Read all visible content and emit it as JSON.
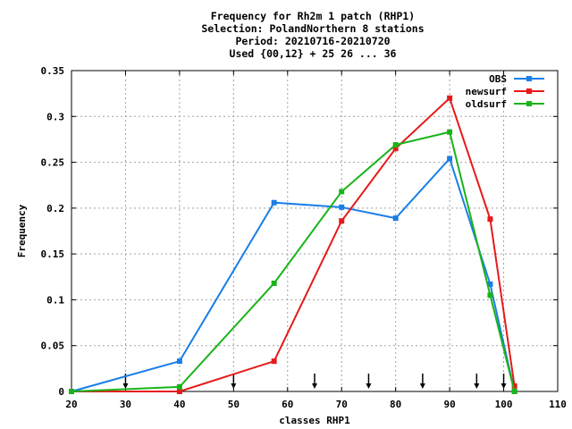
{
  "chart_data": {
    "type": "line",
    "title_lines": [
      "Frequency  for Rh2m 1 patch (RHP1)",
      "Selection: PolandNorthern      8 stations",
      "Period: 20210716-20210720",
      "Used {00,12} + 25 26 ... 36"
    ],
    "xlabel": "classes RHP1",
    "ylabel": "Frequency",
    "xlim": [
      20,
      110
    ],
    "ylim": [
      0,
      0.35
    ],
    "x_ticks": [
      20,
      30,
      40,
      50,
      60,
      70,
      80,
      90,
      100,
      110
    ],
    "x_tick_labels": [
      "20",
      "30",
      "40",
      "50",
      "60",
      "70",
      "80",
      "90",
      "100",
      "110"
    ],
    "y_ticks": [
      0,
      0.05,
      0.1,
      0.15,
      0.2,
      0.25,
      0.3,
      0.35
    ],
    "y_tick_labels": [
      "0",
      "0.05",
      "0.1",
      "0.15",
      "0.2",
      "0.25",
      "0.3",
      "0.35"
    ],
    "grid": true,
    "legend_position": "top-right",
    "class_boundary_arrows": [
      30,
      50,
      65,
      75,
      85,
      95,
      100
    ],
    "series": [
      {
        "name": "OBS",
        "color": "#1a7ee6",
        "x": [
          20,
          40,
          57.5,
          70,
          80,
          90,
          97.5,
          102
        ],
        "y": [
          0.0,
          0.033,
          0.206,
          0.201,
          0.189,
          0.254,
          0.117,
          0.0
        ]
      },
      {
        "name": "newsurf",
        "color": "#e61a1a",
        "x": [
          20,
          40,
          57.5,
          70,
          80,
          90,
          97.5,
          102
        ],
        "y": [
          0.0,
          0.0,
          0.033,
          0.186,
          0.265,
          0.32,
          0.188,
          0.006
        ]
      },
      {
        "name": "oldsurf",
        "color": "#1ab31a",
        "x": [
          20,
          40,
          57.5,
          70,
          80,
          90,
          97.5,
          102
        ],
        "y": [
          0.0,
          0.005,
          0.118,
          0.218,
          0.269,
          0.283,
          0.105,
          0.0
        ]
      }
    ]
  }
}
